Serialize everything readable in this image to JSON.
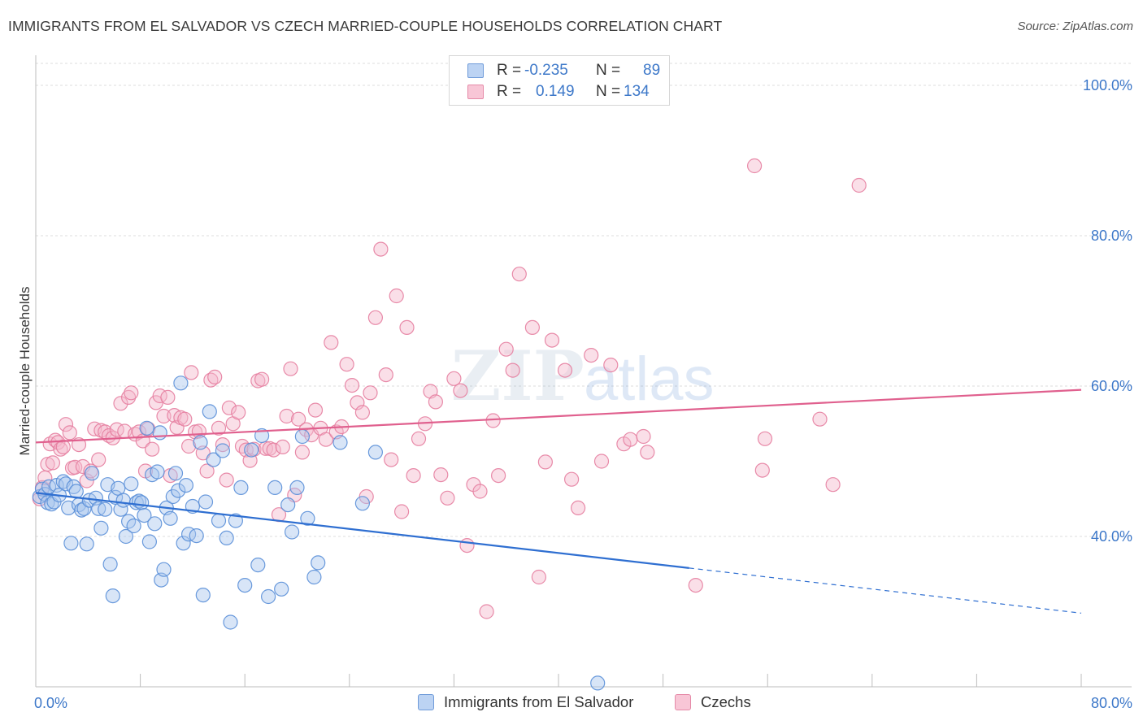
{
  "header": {
    "title": "IMMIGRANTS FROM EL SALVADOR VS CZECH MARRIED-COUPLE HOUSEHOLDS CORRELATION CHART",
    "source": "Source: ZipAtlas.com"
  },
  "legend": {
    "series1": {
      "r_label": "R =",
      "r_value": "-0.235",
      "n_label": "N =",
      "n_value": "89"
    },
    "series2": {
      "r_label": "R =",
      "r_value": "0.149",
      "n_label": "N =",
      "n_value": "134"
    }
  },
  "bottom_legend": {
    "series1": "Immigrants from El Salvador",
    "series2": "Czechs"
  },
  "colors": {
    "blue_fill": "#a9c6ee",
    "blue_stroke": "#5a8fd8",
    "blue_line": "#2f6fd1",
    "pink_fill": "#f5b8cc",
    "pink_stroke": "#e57ea0",
    "pink_line": "#e0608e",
    "tick": "#3d78c9"
  },
  "chart_data": {
    "type": "scatter",
    "title": "IMMIGRANTS FROM EL SALVADOR VS CZECH MARRIED-COUPLE HOUSEHOLDS CORRELATION CHART",
    "xlabel": "",
    "ylabel": "Married-couple Households",
    "xlim": [
      0,
      80
    ],
    "ylim": [
      20,
      104
    ],
    "x_tick_labels": [
      "0.0%",
      "80.0%"
    ],
    "y_tick_labels": [
      "40.0%",
      "60.0%",
      "80.0%",
      "100.0%"
    ],
    "y_ticks": [
      40,
      60,
      80,
      100
    ],
    "grid": true,
    "watermark": "ZIPatlas",
    "series": [
      {
        "name": "Immigrants from El Salvador",
        "R": -0.235,
        "N": 89,
        "trend": {
          "x0": 0,
          "y0": 45.8,
          "x1": 50,
          "y1": 35.8,
          "dashed_to_x": 80,
          "dashed_to_y": 29.8
        },
        "points": [
          [
            0.3,
            45.3
          ],
          [
            0.5,
            46.3
          ],
          [
            0.7,
            45.6
          ],
          [
            0.9,
            44.5
          ],
          [
            1.0,
            46.6
          ],
          [
            1.2,
            44.3
          ],
          [
            1.4,
            44.6
          ],
          [
            1.6,
            46.8
          ],
          [
            1.8,
            45.5
          ],
          [
            2.1,
            47.3
          ],
          [
            2.3,
            47.0
          ],
          [
            2.5,
            43.8
          ],
          [
            2.7,
            39.1
          ],
          [
            2.9,
            46.6
          ],
          [
            3.1,
            46.0
          ],
          [
            3.3,
            44.2
          ],
          [
            3.5,
            43.5
          ],
          [
            3.7,
            43.7
          ],
          [
            3.9,
            39.0
          ],
          [
            4.1,
            44.8
          ],
          [
            4.3,
            48.4
          ],
          [
            4.6,
            45.1
          ],
          [
            4.8,
            43.7
          ],
          [
            5.0,
            41.1
          ],
          [
            5.3,
            43.6
          ],
          [
            5.5,
            46.9
          ],
          [
            5.7,
            36.3
          ],
          [
            5.9,
            32.1
          ],
          [
            6.1,
            45.2
          ],
          [
            6.3,
            46.4
          ],
          [
            6.5,
            43.6
          ],
          [
            6.7,
            44.8
          ],
          [
            6.9,
            40.0
          ],
          [
            7.1,
            42.0
          ],
          [
            7.3,
            47.0
          ],
          [
            7.5,
            41.4
          ],
          [
            7.7,
            44.5
          ],
          [
            7.9,
            44.7
          ],
          [
            8.1,
            44.5
          ],
          [
            8.3,
            42.8
          ],
          [
            8.5,
            54.4
          ],
          [
            8.7,
            39.3
          ],
          [
            8.9,
            48.2
          ],
          [
            9.1,
            41.7
          ],
          [
            9.3,
            48.6
          ],
          [
            9.5,
            53.8
          ],
          [
            9.6,
            34.2
          ],
          [
            9.8,
            35.6
          ],
          [
            10.0,
            43.8
          ],
          [
            10.3,
            42.4
          ],
          [
            10.5,
            45.3
          ],
          [
            10.7,
            48.4
          ],
          [
            10.9,
            46.1
          ],
          [
            11.1,
            60.4
          ],
          [
            11.3,
            39.1
          ],
          [
            11.5,
            46.8
          ],
          [
            11.7,
            40.3
          ],
          [
            12.0,
            44.0
          ],
          [
            12.3,
            40.1
          ],
          [
            12.6,
            52.5
          ],
          [
            12.8,
            32.2
          ],
          [
            13.0,
            44.6
          ],
          [
            13.3,
            56.6
          ],
          [
            13.6,
            50.2
          ],
          [
            14.0,
            42.1
          ],
          [
            14.3,
            51.4
          ],
          [
            14.6,
            39.8
          ],
          [
            14.9,
            28.6
          ],
          [
            15.3,
            42.1
          ],
          [
            15.7,
            46.5
          ],
          [
            16.0,
            33.5
          ],
          [
            16.5,
            51.5
          ],
          [
            17.0,
            36.2
          ],
          [
            17.3,
            53.4
          ],
          [
            17.8,
            32.0
          ],
          [
            18.3,
            46.5
          ],
          [
            18.8,
            33.0
          ],
          [
            19.3,
            44.2
          ],
          [
            19.6,
            40.6
          ],
          [
            20.0,
            46.5
          ],
          [
            20.4,
            53.3
          ],
          [
            20.8,
            42.4
          ],
          [
            21.3,
            34.6
          ],
          [
            21.6,
            36.5
          ],
          [
            23.3,
            52.5
          ],
          [
            25.0,
            44.4
          ],
          [
            26.0,
            51.2
          ],
          [
            43.0,
            20.5
          ]
        ]
      },
      {
        "name": "Czechs",
        "R": 0.149,
        "N": 134,
        "trend": {
          "x0": 0,
          "y0": 52.5,
          "x1": 80,
          "y1": 59.5
        },
        "points": [
          [
            0.3,
            45.0
          ],
          [
            0.5,
            46.5
          ],
          [
            0.7,
            47.8
          ],
          [
            0.9,
            49.6
          ],
          [
            1.1,
            52.3
          ],
          [
            1.3,
            49.8
          ],
          [
            1.5,
            52.8
          ],
          [
            1.7,
            52.5
          ],
          [
            1.9,
            51.6
          ],
          [
            2.1,
            51.9
          ],
          [
            2.3,
            54.9
          ],
          [
            2.6,
            53.8
          ],
          [
            2.8,
            49.1
          ],
          [
            3.0,
            49.2
          ],
          [
            3.3,
            52.2
          ],
          [
            3.6,
            49.3
          ],
          [
            3.9,
            47.4
          ],
          [
            4.2,
            48.7
          ],
          [
            4.5,
            54.3
          ],
          [
            4.8,
            50.2
          ],
          [
            5.0,
            54.1
          ],
          [
            5.3,
            53.9
          ],
          [
            5.6,
            53.4
          ],
          [
            5.9,
            53.1
          ],
          [
            6.2,
            54.2
          ],
          [
            6.5,
            57.7
          ],
          [
            6.8,
            54.0
          ],
          [
            7.1,
            58.5
          ],
          [
            7.3,
            59.1
          ],
          [
            7.6,
            53.6
          ],
          [
            7.9,
            53.9
          ],
          [
            8.2,
            52.7
          ],
          [
            8.4,
            48.7
          ],
          [
            8.6,
            54.3
          ],
          [
            8.9,
            51.6
          ],
          [
            9.2,
            57.8
          ],
          [
            9.5,
            58.7
          ],
          [
            9.8,
            56.0
          ],
          [
            10.1,
            58.5
          ],
          [
            10.3,
            48.1
          ],
          [
            10.6,
            56.1
          ],
          [
            10.8,
            54.5
          ],
          [
            11.1,
            55.8
          ],
          [
            11.4,
            55.6
          ],
          [
            11.7,
            52.0
          ],
          [
            11.9,
            61.8
          ],
          [
            12.2,
            53.9
          ],
          [
            12.5,
            54.0
          ],
          [
            12.8,
            51.1
          ],
          [
            13.1,
            48.7
          ],
          [
            13.4,
            60.8
          ],
          [
            13.7,
            61.2
          ],
          [
            14.0,
            54.4
          ],
          [
            14.3,
            52.2
          ],
          [
            14.6,
            47.5
          ],
          [
            14.8,
            57.1
          ],
          [
            15.1,
            55.0
          ],
          [
            15.5,
            56.5
          ],
          [
            15.8,
            52.0
          ],
          [
            16.1,
            51.5
          ],
          [
            16.4,
            50.1
          ],
          [
            16.7,
            51.6
          ],
          [
            17.0,
            60.7
          ],
          [
            17.3,
            60.9
          ],
          [
            17.6,
            51.7
          ],
          [
            17.9,
            51.7
          ],
          [
            18.2,
            51.5
          ],
          [
            18.6,
            42.9
          ],
          [
            18.9,
            51.9
          ],
          [
            19.2,
            56.0
          ],
          [
            19.5,
            62.3
          ],
          [
            19.8,
            45.5
          ],
          [
            20.1,
            55.6
          ],
          [
            20.4,
            51.2
          ],
          [
            20.7,
            54.2
          ],
          [
            21.1,
            53.5
          ],
          [
            21.4,
            56.8
          ],
          [
            21.8,
            54.4
          ],
          [
            22.2,
            52.9
          ],
          [
            22.6,
            65.8
          ],
          [
            23.0,
            53.9
          ],
          [
            23.4,
            54.6
          ],
          [
            23.8,
            62.9
          ],
          [
            24.2,
            60.1
          ],
          [
            24.6,
            57.8
          ],
          [
            25.0,
            56.5
          ],
          [
            25.3,
            45.3
          ],
          [
            25.6,
            59.1
          ],
          [
            26.0,
            69.1
          ],
          [
            26.4,
            78.2
          ],
          [
            26.8,
            61.5
          ],
          [
            27.2,
            50.2
          ],
          [
            27.6,
            72.0
          ],
          [
            28.0,
            43.3
          ],
          [
            28.4,
            67.8
          ],
          [
            28.9,
            48.1
          ],
          [
            29.3,
            53.0
          ],
          [
            29.8,
            55.0
          ],
          [
            30.2,
            59.3
          ],
          [
            30.6,
            57.9
          ],
          [
            31.0,
            48.2
          ],
          [
            31.5,
            45.1
          ],
          [
            32.0,
            61.0
          ],
          [
            32.5,
            59.4
          ],
          [
            33.0,
            38.8
          ],
          [
            33.5,
            46.9
          ],
          [
            34.0,
            46.0
          ],
          [
            34.5,
            30.0
          ],
          [
            35.0,
            55.4
          ],
          [
            35.4,
            48.1
          ],
          [
            36.0,
            64.9
          ],
          [
            36.5,
            62.1
          ],
          [
            37.0,
            74.9
          ],
          [
            38.0,
            67.8
          ],
          [
            38.5,
            34.6
          ],
          [
            39.0,
            49.9
          ],
          [
            39.5,
            66.1
          ],
          [
            40.5,
            62.1
          ],
          [
            41.0,
            47.6
          ],
          [
            41.5,
            43.8
          ],
          [
            42.5,
            64.1
          ],
          [
            43.3,
            50.0
          ],
          [
            44.0,
            62.8
          ],
          [
            45.0,
            52.3
          ],
          [
            45.5,
            52.9
          ],
          [
            46.8,
            51.2
          ],
          [
            50.5,
            33.5
          ],
          [
            55.0,
            89.3
          ],
          [
            55.6,
            48.8
          ],
          [
            60.0,
            55.6
          ],
          [
            61.0,
            46.9
          ],
          [
            63.0,
            86.7
          ],
          [
            55.8,
            53.0
          ],
          [
            46.5,
            53.3
          ]
        ]
      }
    ]
  }
}
